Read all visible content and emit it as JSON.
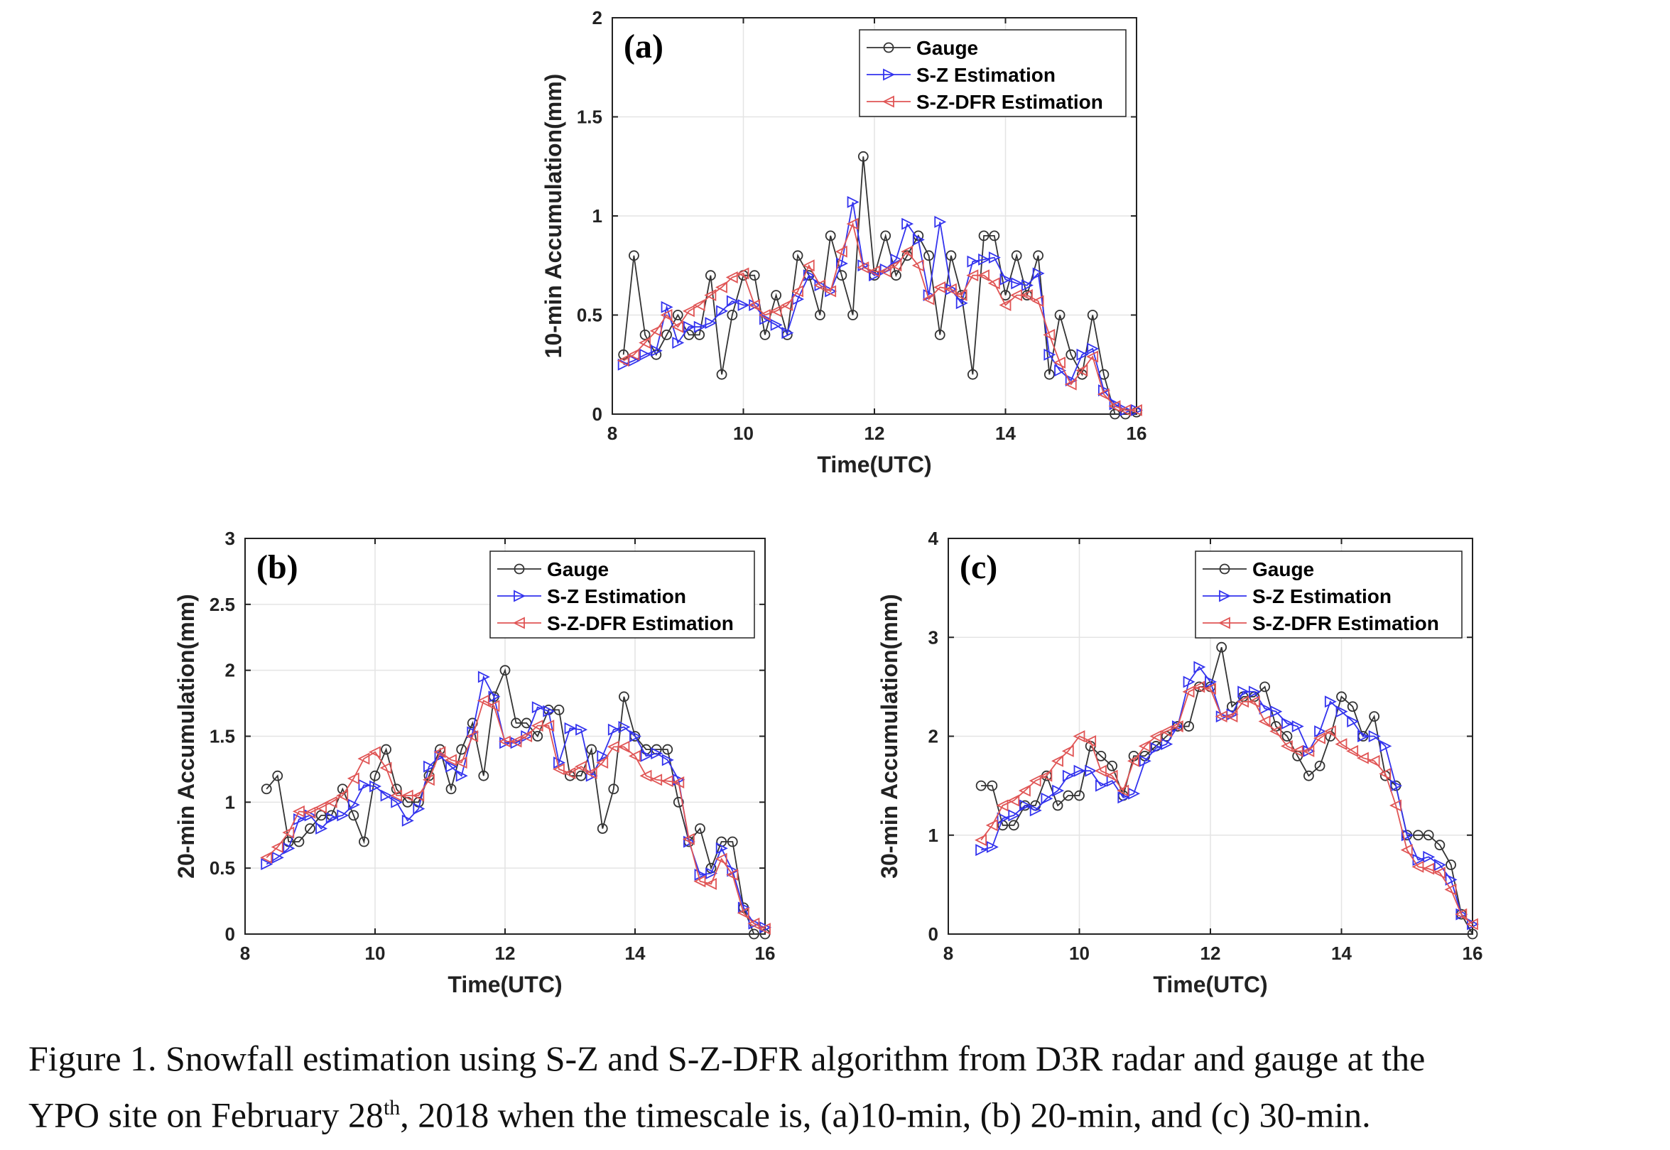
{
  "caption": {
    "line1": "Figure 1. Snowfall estimation using S-Z and S-Z-DFR algorithm from D3R radar and gauge at the",
    "line2_a": "YPO site on February 28",
    "line2_sup": "th",
    "line2_b": ", 2018 when the timescale is, (a)10-min, (b) 20-min, and (c) 30-min."
  },
  "colors": {
    "gauge": "#333333",
    "sz": "#3333ee",
    "szdfr": "#e05555",
    "grid": "#e4e4e4",
    "axis": "#222222"
  },
  "chart_data": [
    {
      "type": "line",
      "panel_label": "(a)",
      "xlabel": "Time(UTC)",
      "ylabel": "10-min Accumulation(mm)",
      "xlim": [
        8,
        16
      ],
      "ylim": [
        0,
        2
      ],
      "xticks": [
        8,
        10,
        12,
        14,
        16
      ],
      "yticks": [
        0,
        0.5,
        1,
        1.5,
        2
      ],
      "ytick_labels": [
        "0",
        "0.5",
        "1",
        "1.5",
        "2"
      ],
      "grid": true,
      "legend_position": "top-right",
      "series": [
        {
          "name": "Gauge",
          "marker": "circle",
          "x": [
            8.17,
            8.33,
            8.5,
            8.67,
            8.83,
            9.0,
            9.17,
            9.33,
            9.5,
            9.67,
            9.83,
            10.0,
            10.17,
            10.33,
            10.5,
            10.67,
            10.83,
            11.0,
            11.17,
            11.33,
            11.5,
            11.67,
            11.83,
            12.0,
            12.17,
            12.33,
            12.5,
            12.67,
            12.83,
            13.0,
            13.17,
            13.33,
            13.5,
            13.67,
            13.83,
            14.0,
            14.17,
            14.33,
            14.5,
            14.67,
            14.83,
            15.0,
            15.17,
            15.33,
            15.5,
            15.67,
            15.83,
            16.0
          ],
          "y": [
            0.3,
            0.8,
            0.4,
            0.3,
            0.4,
            0.5,
            0.4,
            0.4,
            0.7,
            0.2,
            0.5,
            0.7,
            0.7,
            0.4,
            0.6,
            0.4,
            0.8,
            0.7,
            0.5,
            0.9,
            0.7,
            0.5,
            1.3,
            0.7,
            0.9,
            0.7,
            0.8,
            0.9,
            0.8,
            0.4,
            0.8,
            0.6,
            0.2,
            0.9,
            0.9,
            0.6,
            0.8,
            0.6,
            0.8,
            0.2,
            0.5,
            0.3,
            0.2,
            0.5,
            0.2,
            0.0,
            0.0,
            0.01
          ]
        },
        {
          "name": "S-Z Estimation",
          "marker": "triangle-right",
          "x": [
            8.17,
            8.33,
            8.5,
            8.67,
            8.83,
            9.0,
            9.17,
            9.33,
            9.5,
            9.67,
            9.83,
            10.0,
            10.17,
            10.33,
            10.5,
            10.67,
            10.83,
            11.0,
            11.17,
            11.33,
            11.5,
            11.67,
            11.83,
            12.0,
            12.17,
            12.33,
            12.5,
            12.67,
            12.83,
            13.0,
            13.17,
            13.33,
            13.5,
            13.67,
            13.83,
            14.0,
            14.17,
            14.33,
            14.5,
            14.67,
            14.83,
            15.0,
            15.17,
            15.33,
            15.5,
            15.67,
            15.83,
            16.0
          ],
          "y": [
            0.25,
            0.27,
            0.3,
            0.32,
            0.54,
            0.36,
            0.44,
            0.44,
            0.46,
            0.52,
            0.57,
            0.55,
            0.55,
            0.48,
            0.45,
            0.41,
            0.58,
            0.7,
            0.65,
            0.62,
            0.76,
            1.07,
            0.75,
            0.7,
            0.73,
            0.78,
            0.96,
            0.88,
            0.6,
            0.97,
            0.63,
            0.56,
            0.77,
            0.78,
            0.79,
            0.68,
            0.66,
            0.65,
            0.71,
            0.3,
            0.22,
            0.17,
            0.3,
            0.33,
            0.12,
            0.05,
            0.02,
            0.02
          ]
        },
        {
          "name": "S-Z-DFR Estimation",
          "marker": "triangle-left",
          "x": [
            8.17,
            8.33,
            8.5,
            8.67,
            8.83,
            9.0,
            9.17,
            9.33,
            9.5,
            9.67,
            9.83,
            10.0,
            10.17,
            10.33,
            10.5,
            10.67,
            10.83,
            11.0,
            11.17,
            11.33,
            11.5,
            11.67,
            11.83,
            12.0,
            12.17,
            12.33,
            12.5,
            12.67,
            12.83,
            13.0,
            13.17,
            13.33,
            13.5,
            13.67,
            13.83,
            14.0,
            14.17,
            14.33,
            14.5,
            14.67,
            14.83,
            15.0,
            15.17,
            15.33,
            15.5,
            15.67,
            15.83,
            16.0
          ],
          "y": [
            0.27,
            0.3,
            0.36,
            0.42,
            0.5,
            0.44,
            0.52,
            0.55,
            0.6,
            0.64,
            0.69,
            0.71,
            0.55,
            0.5,
            0.52,
            0.55,
            0.62,
            0.75,
            0.65,
            0.62,
            0.82,
            0.96,
            0.74,
            0.72,
            0.72,
            0.75,
            0.82,
            0.75,
            0.58,
            0.64,
            0.63,
            0.6,
            0.7,
            0.7,
            0.66,
            0.55,
            0.6,
            0.6,
            0.57,
            0.4,
            0.26,
            0.15,
            0.22,
            0.29,
            0.1,
            0.04,
            0.02,
            0.02
          ]
        }
      ]
    },
    {
      "type": "line",
      "panel_label": "(b)",
      "xlabel": "Time(UTC)",
      "ylabel": "20-min Accumulation(mm)",
      "xlim": [
        8,
        16
      ],
      "ylim": [
        0,
        3
      ],
      "xticks": [
        8,
        10,
        12,
        14,
        16
      ],
      "yticks": [
        0,
        0.5,
        1,
        1.5,
        2,
        2.5,
        3
      ],
      "ytick_labels": [
        "0",
        "0.5",
        "1",
        "1.5",
        "2",
        "2.5",
        "3"
      ],
      "grid": true,
      "legend_position": "top-right",
      "series": [
        {
          "name": "Gauge",
          "marker": "circle",
          "x": [
            8.33,
            8.5,
            8.67,
            8.83,
            9.0,
            9.17,
            9.33,
            9.5,
            9.67,
            9.83,
            10.0,
            10.17,
            10.33,
            10.5,
            10.67,
            10.83,
            11.0,
            11.17,
            11.33,
            11.5,
            11.67,
            11.83,
            12.0,
            12.17,
            12.33,
            12.5,
            12.67,
            12.83,
            13.0,
            13.17,
            13.33,
            13.5,
            13.67,
            13.83,
            14.0,
            14.17,
            14.33,
            14.5,
            14.67,
            14.83,
            15.0,
            15.17,
            15.33,
            15.5,
            15.67,
            15.83,
            16.0
          ],
          "y": [
            1.1,
            1.2,
            0.7,
            0.7,
            0.8,
            0.9,
            0.9,
            1.1,
            0.9,
            0.7,
            1.2,
            1.4,
            1.1,
            1.0,
            1.0,
            1.2,
            1.4,
            1.1,
            1.4,
            1.6,
            1.2,
            1.8,
            2.0,
            1.6,
            1.6,
            1.5,
            1.7,
            1.7,
            1.2,
            1.2,
            1.4,
            0.8,
            1.1,
            1.8,
            1.5,
            1.4,
            1.4,
            1.4,
            1.0,
            0.7,
            0.8,
            0.5,
            0.7,
            0.7,
            0.2,
            0.0,
            0.0
          ]
        },
        {
          "name": "S-Z Estimation",
          "marker": "triangle-right",
          "x": [
            8.33,
            8.5,
            8.67,
            8.83,
            9.0,
            9.17,
            9.33,
            9.5,
            9.67,
            9.83,
            10.0,
            10.17,
            10.33,
            10.5,
            10.67,
            10.83,
            11.0,
            11.17,
            11.33,
            11.5,
            11.67,
            11.83,
            12.0,
            12.17,
            12.33,
            12.5,
            12.67,
            12.83,
            13.0,
            13.17,
            13.33,
            13.5,
            13.67,
            13.83,
            14.0,
            14.17,
            14.33,
            14.5,
            14.67,
            14.83,
            15.0,
            15.17,
            15.33,
            15.5,
            15.67,
            15.83,
            16.0
          ],
          "y": [
            0.53,
            0.58,
            0.65,
            0.87,
            0.9,
            0.8,
            0.88,
            0.9,
            0.98,
            1.13,
            1.12,
            1.05,
            1.0,
            0.86,
            0.95,
            1.27,
            1.35,
            1.27,
            1.2,
            1.53,
            1.95,
            1.8,
            1.45,
            1.45,
            1.5,
            1.72,
            1.69,
            1.3,
            1.56,
            1.55,
            1.2,
            1.35,
            1.55,
            1.57,
            1.5,
            1.35,
            1.37,
            1.32,
            1.17,
            0.7,
            0.45,
            0.46,
            0.65,
            0.48,
            0.2,
            0.08,
            0.05
          ]
        },
        {
          "name": "S-Z-DFR Estimation",
          "marker": "triangle-left",
          "x": [
            8.33,
            8.5,
            8.67,
            8.83,
            9.0,
            9.17,
            9.33,
            9.5,
            9.67,
            9.83,
            10.0,
            10.17,
            10.33,
            10.5,
            10.67,
            10.83,
            11.0,
            11.17,
            11.33,
            11.5,
            11.67,
            11.83,
            12.0,
            12.17,
            12.33,
            12.5,
            12.67,
            12.83,
            13.0,
            13.17,
            13.33,
            13.5,
            13.67,
            13.83,
            14.0,
            14.17,
            14.33,
            14.5,
            14.67,
            14.83,
            15.0,
            15.17,
            15.33,
            15.5,
            15.67,
            15.83,
            16.0
          ],
          "y": [
            0.58,
            0.66,
            0.77,
            0.93,
            0.92,
            0.96,
            1.0,
            1.05,
            1.18,
            1.33,
            1.38,
            1.26,
            1.05,
            1.05,
            1.05,
            1.17,
            1.38,
            1.32,
            1.3,
            1.5,
            1.77,
            1.73,
            1.46,
            1.46,
            1.5,
            1.58,
            1.58,
            1.25,
            1.22,
            1.27,
            1.22,
            1.3,
            1.42,
            1.42,
            1.35,
            1.2,
            1.17,
            1.16,
            1.15,
            0.72,
            0.4,
            0.38,
            0.57,
            0.45,
            0.16,
            0.08,
            0.04
          ]
        }
      ]
    },
    {
      "type": "line",
      "panel_label": "(c)",
      "xlabel": "Time(UTC)",
      "ylabel": "30-min Accumulation(mm)",
      "xlim": [
        8,
        16
      ],
      "ylim": [
        0,
        4
      ],
      "xticks": [
        8,
        10,
        12,
        14,
        16
      ],
      "yticks": [
        0,
        1,
        2,
        3,
        4
      ],
      "ytick_labels": [
        "0",
        "1",
        "2",
        "3",
        "4"
      ],
      "grid": true,
      "legend_position": "top-right",
      "series": [
        {
          "name": "Gauge",
          "marker": "circle",
          "x": [
            8.5,
            8.67,
            8.83,
            9.0,
            9.17,
            9.33,
            9.5,
            9.67,
            9.83,
            10.0,
            10.17,
            10.33,
            10.5,
            10.67,
            10.83,
            11.0,
            11.17,
            11.33,
            11.5,
            11.67,
            11.83,
            12.0,
            12.17,
            12.33,
            12.5,
            12.67,
            12.83,
            13.0,
            13.17,
            13.33,
            13.5,
            13.67,
            13.83,
            14.0,
            14.17,
            14.33,
            14.5,
            14.67,
            14.83,
            15.0,
            15.17,
            15.33,
            15.5,
            15.67,
            15.83,
            16.0
          ],
          "y": [
            1.5,
            1.5,
            1.1,
            1.1,
            1.3,
            1.3,
            1.6,
            1.3,
            1.4,
            1.4,
            1.9,
            1.8,
            1.7,
            1.4,
            1.8,
            1.8,
            1.9,
            2.0,
            2.1,
            2.1,
            2.5,
            2.5,
            2.9,
            2.3,
            2.4,
            2.4,
            2.5,
            2.1,
            2.0,
            1.8,
            1.6,
            1.7,
            2.0,
            2.4,
            2.3,
            2.0,
            2.2,
            1.6,
            1.5,
            1.0,
            1.0,
            1.0,
            0.9,
            0.7,
            0.2,
            0.0
          ]
        },
        {
          "name": "S-Z Estimation",
          "marker": "triangle-right",
          "x": [
            8.5,
            8.67,
            8.83,
            9.0,
            9.17,
            9.33,
            9.5,
            9.67,
            9.83,
            10.0,
            10.17,
            10.33,
            10.5,
            10.67,
            10.83,
            11.0,
            11.17,
            11.33,
            11.5,
            11.67,
            11.83,
            12.0,
            12.17,
            12.33,
            12.5,
            12.67,
            12.83,
            13.0,
            13.17,
            13.33,
            13.5,
            13.67,
            13.83,
            14.0,
            14.17,
            14.33,
            14.5,
            14.67,
            14.83,
            15.0,
            15.17,
            15.33,
            15.5,
            15.67,
            15.83,
            16.0
          ],
          "y": [
            0.85,
            0.88,
            1.17,
            1.2,
            1.3,
            1.25,
            1.37,
            1.45,
            1.6,
            1.65,
            1.65,
            1.5,
            1.55,
            1.38,
            1.42,
            1.75,
            1.88,
            1.92,
            2.1,
            2.55,
            2.7,
            2.55,
            2.2,
            2.22,
            2.45,
            2.45,
            2.28,
            2.25,
            2.13,
            2.1,
            1.85,
            2.05,
            2.35,
            2.25,
            2.15,
            2.0,
            2.0,
            1.9,
            1.5,
            1.0,
            0.75,
            0.78,
            0.7,
            0.55,
            0.2,
            0.1
          ]
        },
        {
          "name": "S-Z-DFR Estimation",
          "marker": "triangle-left",
          "x": [
            8.5,
            8.67,
            8.83,
            9.0,
            9.17,
            9.33,
            9.5,
            9.67,
            9.83,
            10.0,
            10.17,
            10.33,
            10.5,
            10.67,
            10.83,
            11.0,
            11.17,
            11.33,
            11.5,
            11.67,
            11.83,
            12.0,
            12.17,
            12.33,
            12.5,
            12.67,
            12.83,
            13.0,
            13.17,
            13.33,
            13.5,
            13.67,
            13.83,
            14.0,
            14.17,
            14.33,
            14.5,
            14.67,
            14.83,
            15.0,
            15.17,
            15.33,
            15.5,
            15.67,
            15.83,
            16.0
          ],
          "y": [
            0.95,
            1.1,
            1.3,
            1.35,
            1.45,
            1.55,
            1.6,
            1.75,
            1.85,
            2.0,
            1.95,
            1.65,
            1.6,
            1.45,
            1.75,
            1.9,
            2.0,
            2.05,
            2.1,
            2.45,
            2.5,
            2.48,
            2.2,
            2.2,
            2.35,
            2.35,
            2.15,
            2.05,
            1.9,
            1.85,
            1.85,
            1.98,
            2.05,
            1.92,
            1.85,
            1.78,
            1.75,
            1.62,
            1.3,
            0.85,
            0.68,
            0.66,
            0.62,
            0.45,
            0.2,
            0.1
          ]
        }
      ]
    }
  ]
}
